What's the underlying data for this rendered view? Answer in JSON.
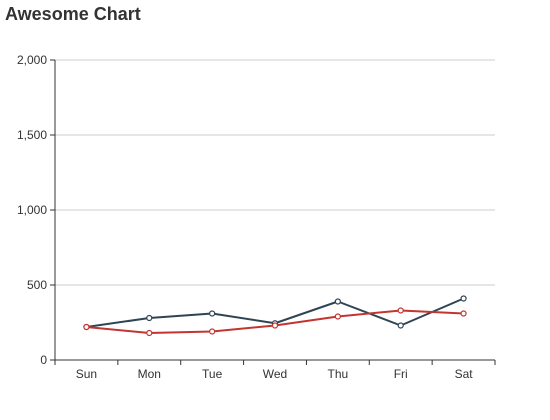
{
  "chart_data": {
    "type": "line",
    "title": "Awesome Chart",
    "categories": [
      "Sun",
      "Mon",
      "Tue",
      "Wed",
      "Thu",
      "Fri",
      "Sat"
    ],
    "y_ticks": [
      "0",
      "500",
      "1,000",
      "1,500",
      "2,000"
    ],
    "ylim": [
      0,
      2000
    ],
    "grid": true,
    "series": [
      {
        "color": "#2f4554",
        "values": [
          220,
          280,
          310,
          245,
          390,
          230,
          410
        ]
      },
      {
        "color": "#c23531",
        "values": [
          220,
          180,
          190,
          230,
          290,
          330,
          310
        ]
      }
    ]
  }
}
